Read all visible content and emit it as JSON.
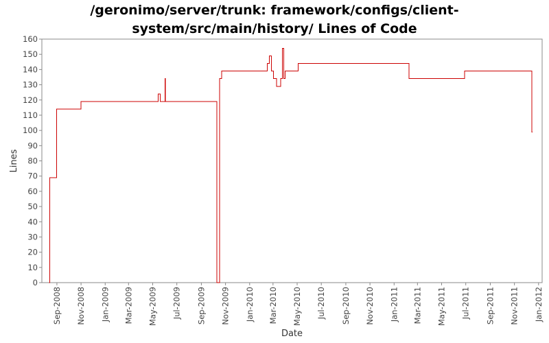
{
  "title_line1": "/geronimo/server/trunk: framework/configs/client-",
  "title_line2": "system/src/main/history/ Lines of Code",
  "chart_data": {
    "type": "line",
    "title": "/geronimo/server/trunk: framework/configs/client-system/src/main/history/ Lines of Code",
    "xlabel": "Date",
    "ylabel": "Lines",
    "ylim": [
      0,
      160
    ],
    "yticks": [
      0,
      10,
      20,
      30,
      40,
      50,
      60,
      70,
      80,
      90,
      100,
      110,
      120,
      130,
      140,
      150,
      160
    ],
    "xlim": [
      "2008-07-25",
      "2012-01-10"
    ],
    "xticks": [
      "Sep-2008",
      "Nov-2008",
      "Jan-2009",
      "Mar-2009",
      "May-2009",
      "Jul-2009",
      "Sep-2009",
      "Nov-2009",
      "Jan-2010",
      "Mar-2010",
      "May-2010",
      "Jul-2010",
      "Sep-2010",
      "Nov-2010",
      "Jan-2011",
      "Mar-2011",
      "May-2011",
      "Jul-2011",
      "Sep-2011",
      "Nov-2011",
      "Jan-2012"
    ],
    "grid": false,
    "legend": "none",
    "series_color": "#cc0000",
    "step": true,
    "x": [
      "2008-08-12",
      "2008-08-14",
      "2008-08-31",
      "2008-11-01",
      "2009-05-15",
      "2009-05-20",
      "2009-06-01",
      "2009-06-02",
      "2009-10-10",
      "2009-10-17",
      "2009-10-22",
      "2010-02-15",
      "2010-02-20",
      "2010-02-25",
      "2010-03-02",
      "2010-03-10",
      "2010-03-20",
      "2010-03-25",
      "2010-03-28",
      "2010-04-01",
      "2010-05-04",
      "2011-02-08",
      "2011-06-28",
      "2011-12-15",
      "2011-12-17"
    ],
    "y": [
      0,
      69,
      114,
      119,
      124,
      119,
      134,
      119,
      0,
      134,
      139,
      144,
      149,
      139,
      134,
      129,
      134,
      154,
      134,
      139,
      144,
      134,
      139,
      99,
      99
    ]
  }
}
